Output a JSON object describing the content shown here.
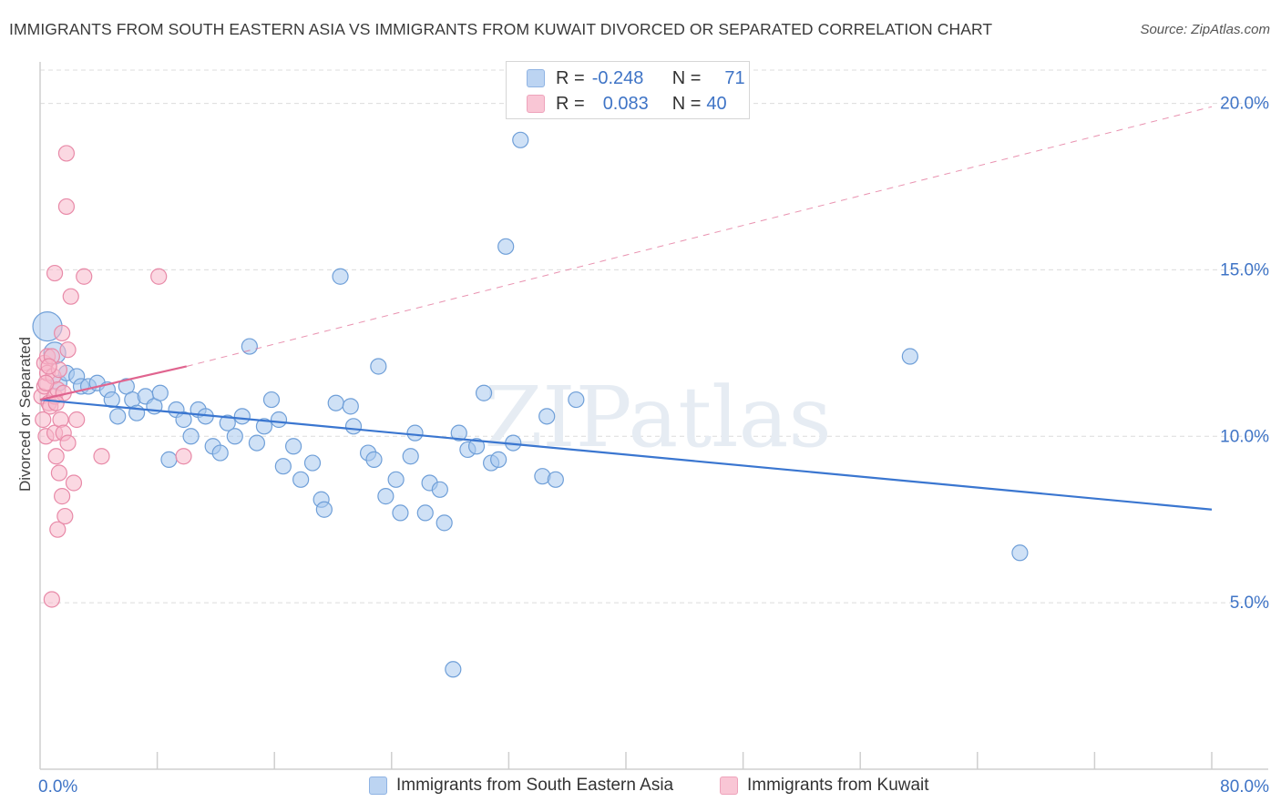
{
  "title": "IMMIGRANTS FROM SOUTH EASTERN ASIA VS IMMIGRANTS FROM KUWAIT DIVORCED OR SEPARATED CORRELATION CHART",
  "source": "Source: ZipAtlas.com",
  "legend": {
    "rows": [
      {
        "r_label": "R =",
        "r_value": "-0.248",
        "n_label": "N =",
        "n_value": "71"
      },
      {
        "r_label": "R =",
        "r_value": "0.083",
        "n_label": "N =",
        "n_value": "40"
      }
    ]
  },
  "colors": {
    "blue_fill": "#a8c8ef",
    "blue_stroke": "#6f9fd8",
    "blue_line": "#3a76d0",
    "pink_fill": "#f7b8cb",
    "pink_stroke": "#e88aa8",
    "pink_line": "#e0648f",
    "tick_text": "#3f74c6",
    "grid": "#dcdcdc"
  },
  "chart_data": {
    "type": "scatter",
    "ylabel": "Divorced or Separated",
    "xlim": [
      0,
      80
    ],
    "ylim": [
      0,
      21
    ],
    "x_tick_labels": [
      {
        "value": 0,
        "label": "0.0%"
      },
      {
        "value": 80,
        "label": "80.0%"
      }
    ],
    "y_tick_labels": [
      {
        "value": 5,
        "label": "5.0%"
      },
      {
        "value": 10,
        "label": "10.0%"
      },
      {
        "value": 15,
        "label": "15.0%"
      },
      {
        "value": 20,
        "label": "20.0%"
      }
    ],
    "grid": "horizontal dashed",
    "watermark": "ZIPatlas",
    "series": [
      {
        "name": "Immigrants from South Eastern Asia",
        "color": "#a8c8ef",
        "points": [
          [
            0.5,
            13.3
          ],
          [
            1.0,
            12.5
          ],
          [
            1.3,
            11.6
          ],
          [
            1.8,
            11.9
          ],
          [
            2.5,
            11.8
          ],
          [
            2.8,
            11.5
          ],
          [
            3.3,
            11.5
          ],
          [
            3.9,
            11.6
          ],
          [
            4.6,
            11.4
          ],
          [
            4.9,
            11.1
          ],
          [
            5.3,
            10.6
          ],
          [
            5.9,
            11.5
          ],
          [
            6.3,
            11.1
          ],
          [
            6.6,
            10.7
          ],
          [
            7.2,
            11.2
          ],
          [
            7.8,
            10.9
          ],
          [
            8.2,
            11.3
          ],
          [
            8.8,
            9.3
          ],
          [
            9.3,
            10.8
          ],
          [
            9.8,
            10.5
          ],
          [
            10.3,
            10.0
          ],
          [
            10.8,
            10.8
          ],
          [
            11.3,
            10.6
          ],
          [
            11.8,
            9.7
          ],
          [
            12.3,
            9.5
          ],
          [
            12.8,
            10.4
          ],
          [
            13.3,
            10.0
          ],
          [
            13.8,
            10.6
          ],
          [
            14.3,
            12.7
          ],
          [
            14.8,
            9.8
          ],
          [
            15.3,
            10.3
          ],
          [
            15.8,
            11.1
          ],
          [
            16.3,
            10.5
          ],
          [
            16.6,
            9.1
          ],
          [
            17.3,
            9.7
          ],
          [
            17.8,
            8.7
          ],
          [
            18.6,
            9.2
          ],
          [
            19.2,
            8.1
          ],
          [
            19.4,
            7.8
          ],
          [
            20.2,
            11.0
          ],
          [
            20.5,
            14.8
          ],
          [
            21.2,
            10.9
          ],
          [
            21.4,
            10.3
          ],
          [
            22.4,
            9.5
          ],
          [
            22.8,
            9.3
          ],
          [
            23.1,
            12.1
          ],
          [
            23.6,
            8.2
          ],
          [
            24.3,
            8.7
          ],
          [
            24.6,
            7.7
          ],
          [
            25.3,
            9.4
          ],
          [
            25.6,
            10.1
          ],
          [
            26.3,
            7.7
          ],
          [
            26.6,
            8.6
          ],
          [
            27.3,
            8.4
          ],
          [
            27.6,
            7.4
          ],
          [
            28.6,
            10.1
          ],
          [
            29.2,
            9.6
          ],
          [
            29.8,
            9.7
          ],
          [
            30.3,
            11.3
          ],
          [
            30.8,
            9.2
          ],
          [
            31.3,
            9.3
          ],
          [
            31.8,
            15.7
          ],
          [
            32.3,
            9.8
          ],
          [
            32.8,
            18.9
          ],
          [
            34.3,
            8.8
          ],
          [
            34.6,
            10.6
          ],
          [
            35.2,
            8.7
          ],
          [
            36.6,
            11.1
          ],
          [
            59.4,
            12.4
          ],
          [
            66.9,
            6.5
          ],
          [
            28.2,
            3.0
          ]
        ],
        "trend": {
          "x": [
            0,
            80
          ],
          "y": [
            11.1,
            7.8
          ]
        }
      },
      {
        "name": "Immigrants from Kuwait",
        "color": "#f7b8cb",
        "points": [
          [
            0.1,
            11.2
          ],
          [
            0.2,
            10.5
          ],
          [
            0.3,
            11.5
          ],
          [
            0.3,
            12.2
          ],
          [
            0.4,
            10.0
          ],
          [
            0.5,
            11.9
          ],
          [
            0.5,
            12.4
          ],
          [
            0.6,
            11.0
          ],
          [
            0.7,
            10.9
          ],
          [
            0.8,
            12.4
          ],
          [
            0.9,
            11.8
          ],
          [
            1.0,
            11.2
          ],
          [
            1.0,
            10.1
          ],
          [
            1.1,
            9.4
          ],
          [
            1.2,
            7.2
          ],
          [
            1.2,
            11.4
          ],
          [
            1.3,
            12.0
          ],
          [
            1.3,
            8.9
          ],
          [
            1.4,
            10.5
          ],
          [
            1.5,
            13.1
          ],
          [
            1.5,
            8.2
          ],
          [
            1.6,
            11.3
          ],
          [
            1.6,
            10.1
          ],
          [
            1.7,
            7.6
          ],
          [
            1.8,
            18.5
          ],
          [
            1.8,
            16.9
          ],
          [
            1.9,
            12.6
          ],
          [
            1.9,
            9.8
          ],
          [
            2.1,
            14.2
          ],
          [
            2.3,
            8.6
          ],
          [
            2.5,
            10.5
          ],
          [
            1.0,
            14.9
          ],
          [
            3.0,
            14.8
          ],
          [
            4.2,
            9.4
          ],
          [
            8.1,
            14.8
          ],
          [
            9.8,
            9.4
          ],
          [
            0.8,
            5.1
          ],
          [
            0.4,
            11.6
          ],
          [
            0.6,
            12.1
          ],
          [
            1.1,
            11.0
          ]
        ],
        "trend": {
          "x": [
            0,
            10
          ],
          "y": [
            11.1,
            12.1
          ]
        },
        "trend_extension": {
          "x": [
            10,
            80
          ],
          "y": [
            12.1,
            19.9
          ]
        }
      }
    ]
  }
}
